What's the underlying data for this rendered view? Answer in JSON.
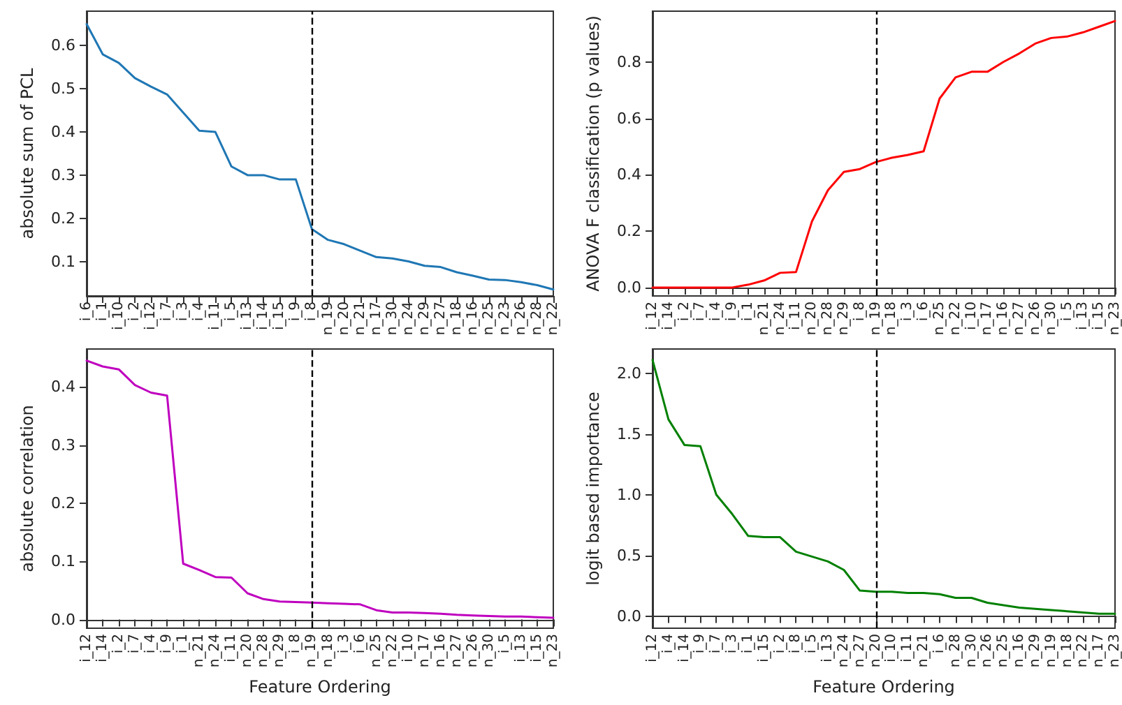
{
  "chart_data": [
    {
      "type": "line",
      "ylabel": "absolute sum of PCL",
      "categories": [
        "i_6",
        "i_1",
        "i_10",
        "i_2",
        "i_12",
        "i_7",
        "i_3",
        "i_4",
        "i_11",
        "i_5",
        "i_13",
        "i_14",
        "i_15",
        "i_9",
        "i_8",
        "n_19",
        "n_20",
        "n_21",
        "n_17",
        "n_30",
        "n_24",
        "n_29",
        "n_27",
        "n_18",
        "n_16",
        "n_25",
        "n_23",
        "n_26",
        "n_28",
        "n_22"
      ],
      "series": [
        {
          "color": "#1f77b4",
          "values": [
            0.65,
            0.58,
            0.56,
            0.525,
            0.505,
            0.487,
            0.445,
            0.403,
            0.4,
            0.32,
            0.3,
            0.3,
            0.29,
            0.29,
            0.175,
            0.15,
            0.14,
            0.125,
            0.11,
            0.107,
            0.1,
            0.09,
            0.087,
            0.075,
            0.067,
            0.058,
            0.057,
            0.052,
            0.045,
            0.035
          ]
        }
      ],
      "ylim": [
        0.02,
        0.68
      ],
      "yticks": [
        {
          "value": 0.1,
          "label": "0.1"
        },
        {
          "value": 0.2,
          "label": "0.2"
        },
        {
          "value": 0.3,
          "label": "0.3"
        },
        {
          "value": 0.4,
          "label": "0.4"
        },
        {
          "value": 0.5,
          "label": "0.5"
        },
        {
          "value": 0.6,
          "label": "0.6"
        }
      ],
      "ref_lines": [
        {
          "axis": "x",
          "value": "i_8",
          "color": "#000000",
          "line_style": "dashed"
        }
      ],
      "grid": false,
      "marker": "none"
    },
    {
      "type": "line",
      "ylabel": "ANOVA F classification (p values)",
      "categories": [
        "i_12",
        "i_14",
        "i_2",
        "i_7",
        "i_4",
        "i_9",
        "i_1",
        "n_21",
        "n_24",
        "i_11",
        "n_20",
        "n_28",
        "n_29",
        "i_8",
        "n_19",
        "n_18",
        "i_3",
        "i_6",
        "n_25",
        "n_22",
        "i_10",
        "n_17",
        "n_16",
        "n_27",
        "n_26",
        "n_30",
        "i_5",
        "i_13",
        "i_15",
        "n_23"
      ],
      "series": [
        {
          "color": "#ff0000",
          "values": [
            0,
            0,
            0,
            0,
            0,
            0,
            0.01,
            0.025,
            0.052,
            0.055,
            0.235,
            0.345,
            0.41,
            0.42,
            0.445,
            0.46,
            0.47,
            0.483,
            0.67,
            0.745,
            0.765,
            0.765,
            0.8,
            0.83,
            0.865,
            0.885,
            0.89,
            0.905,
            0.925,
            0.945
          ]
        }
      ],
      "ylim": [
        -0.03,
        0.98
      ],
      "yticks": [
        {
          "value": 0,
          "label": "0.0"
        },
        {
          "value": 0.2,
          "label": "0.2"
        },
        {
          "value": 0.4,
          "label": "0.4"
        },
        {
          "value": 0.6,
          "label": "0.6"
        },
        {
          "value": 0.8,
          "label": "0.8"
        }
      ],
      "ref_lines": [
        {
          "axis": "x",
          "value": "n_19",
          "color": "#000000",
          "line_style": "dashed"
        }
      ],
      "grid": false,
      "marker": "none"
    },
    {
      "type": "line",
      "ylabel": "absolute correlation",
      "xlabel": "Feature Ordering",
      "categories": [
        "i_12",
        "i_14",
        "i_2",
        "i_7",
        "i_4",
        "i_9",
        "i_1",
        "n_21",
        "n_24",
        "i_11",
        "n_20",
        "n_28",
        "n_29",
        "i_8",
        "n_19",
        "n_18",
        "i_3",
        "i_6",
        "n_25",
        "n_22",
        "i_10",
        "n_17",
        "n_16",
        "n_27",
        "n_26",
        "n_30",
        "i_5",
        "i_13",
        "i_15",
        "n_23"
      ],
      "series": [
        {
          "color": "#bf00bf",
          "values": [
            0.445,
            0.435,
            0.43,
            0.403,
            0.39,
            0.385,
            0.096,
            0.085,
            0.073,
            0.072,
            0.045,
            0.035,
            0.031,
            0.03,
            0.029,
            0.028,
            0.027,
            0.026,
            0.016,
            0.012,
            0.012,
            0.011,
            0.01,
            0.008,
            0.007,
            0.006,
            0.005,
            0.005,
            0.004,
            0.003
          ]
        }
      ],
      "ylim": [
        -0.015,
        0.465
      ],
      "yticks": [
        {
          "value": 0,
          "label": "0.0"
        },
        {
          "value": 0.1,
          "label": "0.1"
        },
        {
          "value": 0.2,
          "label": "0.2"
        },
        {
          "value": 0.3,
          "label": "0.3"
        },
        {
          "value": 0.4,
          "label": "0.4"
        }
      ],
      "ref_lines": [
        {
          "axis": "x",
          "value": "n_19",
          "color": "#000000",
          "line_style": "dashed"
        }
      ],
      "grid": false,
      "marker": "none"
    },
    {
      "type": "line",
      "ylabel": "logit based importance",
      "xlabel": "Feature Ordering",
      "categories": [
        "i_12",
        "i_4",
        "i_14",
        "i_9",
        "i_7",
        "i_3",
        "i_1",
        "i_15",
        "i_2",
        "i_8",
        "i_5",
        "i_13",
        "n_24",
        "n_27",
        "n_20",
        "i_10",
        "i_11",
        "n_21",
        "i_6",
        "n_28",
        "n_30",
        "n_26",
        "n_25",
        "n_16",
        "n_29",
        "n_19",
        "n_18",
        "n_22",
        "n_17",
        "n_23"
      ],
      "series": [
        {
          "color": "#008000",
          "values": [
            2.11,
            1.62,
            1.41,
            1.4,
            1.0,
            0.84,
            0.66,
            0.65,
            0.65,
            0.53,
            0.49,
            0.45,
            0.38,
            0.21,
            0.2,
            0.2,
            0.19,
            0.19,
            0.18,
            0.15,
            0.15,
            0.11,
            0.09,
            0.07,
            0.06,
            0.05,
            0.04,
            0.03,
            0.02,
            0.02
          ]
        }
      ],
      "ylim": [
        -0.1,
        2.2
      ],
      "yticks": [
        {
          "value": 0,
          "label": "0.0"
        },
        {
          "value": 0.5,
          "label": "0.5"
        },
        {
          "value": 1,
          "label": "1.0"
        },
        {
          "value": 1.5,
          "label": "1.5"
        },
        {
          "value": 2,
          "label": "2.0"
        }
      ],
      "ref_lines": [
        {
          "axis": "x",
          "value": "n_20",
          "color": "#000000",
          "line_style": "dashed"
        }
      ],
      "grid": false,
      "marker": "none"
    }
  ]
}
